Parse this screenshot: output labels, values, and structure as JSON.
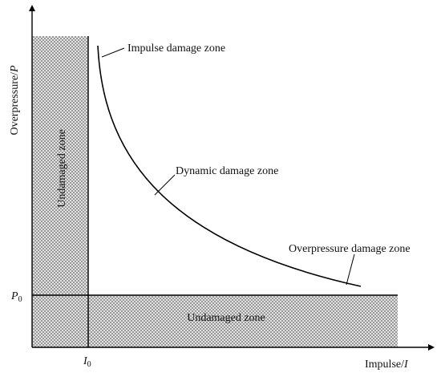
{
  "axes": {
    "y_label_text": "Overpressure/",
    "y_label_var": "P",
    "x_label_text": "Impulse/",
    "x_label_var": "I",
    "y_threshold_var": "P",
    "y_threshold_sub": "0",
    "x_threshold_var": "I",
    "x_threshold_sub": "0"
  },
  "zones": {
    "vertical_undamaged": "Undamaged zone",
    "horizontal_undamaged": "Undamaged zone",
    "impulse_damage": "Impulse damage zone",
    "dynamic_damage": "Dynamic damage zone",
    "overpressure_damage": "Overpressure damage zone"
  },
  "colors": {
    "line": "#000000",
    "hatch": "#7a7a7a",
    "hatch_bg": "#f2f2f2"
  }
}
